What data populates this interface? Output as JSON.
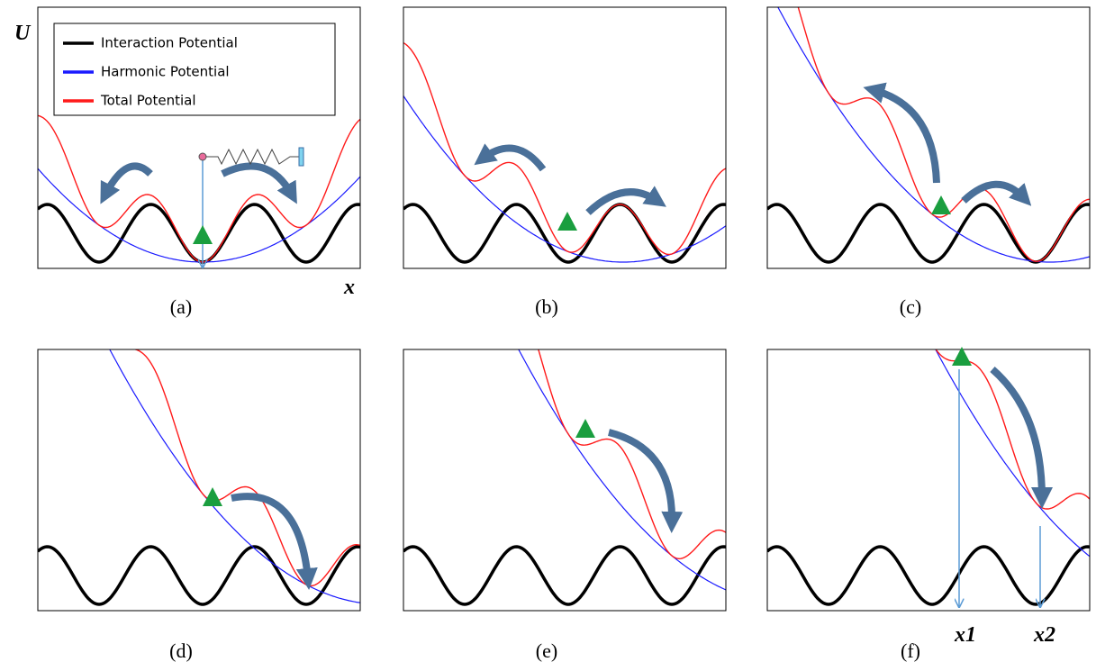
{
  "legend": [
    "Interaction Potential",
    "Harmonic Potential",
    "Total Potential"
  ],
  "panels": [
    {
      "label": "(a)"
    },
    {
      "label": "(b)"
    },
    {
      "label": "(c)"
    },
    {
      "label": "(d)"
    },
    {
      "label": "(e)"
    },
    {
      "label": "(f)"
    }
  ],
  "axis": {
    "y": "U",
    "x": "x"
  },
  "markers": {
    "x1": "x1",
    "x2": "x2"
  }
}
